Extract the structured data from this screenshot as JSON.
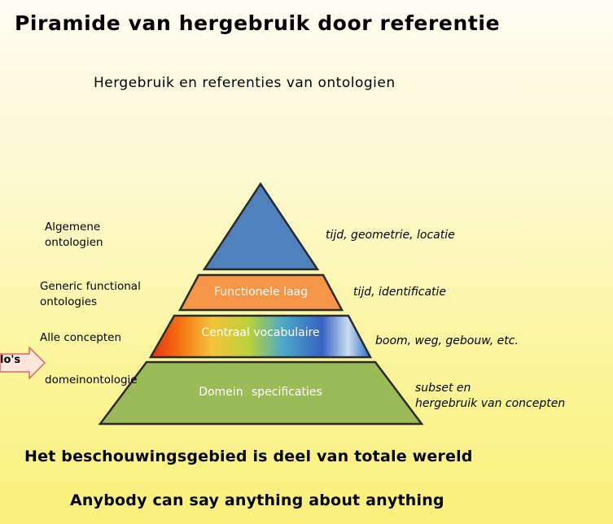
{
  "title": "Piramide van hergebruik door referentie",
  "subtitle": "Hergebruik en referenties van ontologien",
  "left_labels": {
    "algemene": [
      "Algemene",
      "ontologien"
    ],
    "generic": [
      "Generic functional",
      "ontologies"
    ],
    "alle": "Alle concepten",
    "domein": "domeinontologie"
  },
  "layers": {
    "functionele": "Functionele laag",
    "centraal": "Centraal vocabulaire",
    "domein": "Domein specificaties"
  },
  "right_labels": {
    "top": "tijd, geometrie, locatie",
    "functionele": "tijd, identificatie",
    "centraal": "boom, weg, gebouw, etc.",
    "domein": [
      "subset en",
      "hergebruik van concepten"
    ]
  },
  "arrow_label": "lo's",
  "colors": {
    "top": "#4f81bd",
    "functionele": "#f79646",
    "domein": "#9bbb59",
    "outline": "#2b2b2b"
  },
  "footer": {
    "line1": "Het beschouwingsgebied is deel van totale wereld",
    "line2": "Anybody can say anything about anything"
  }
}
